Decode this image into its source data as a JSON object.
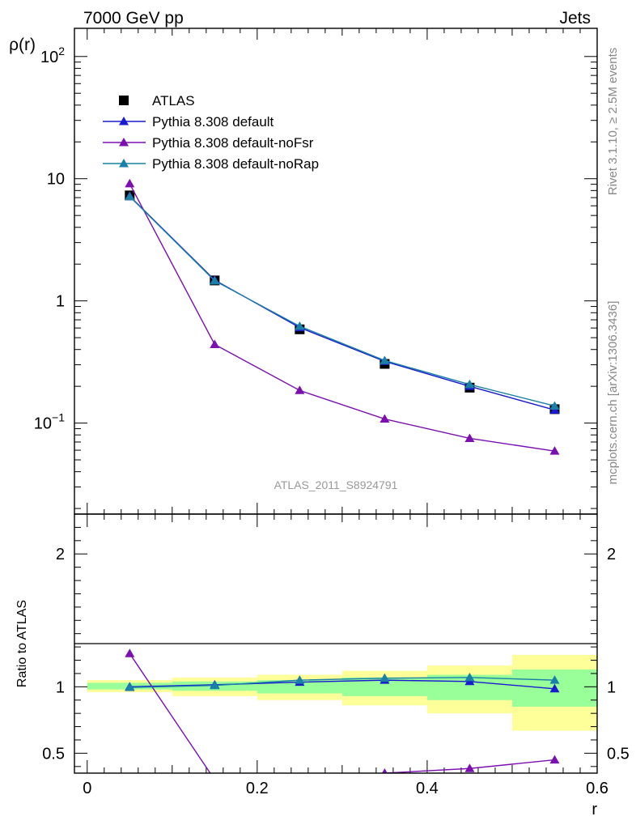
{
  "header": {
    "left_label": "7000 GeV pp",
    "right_label": "Jets"
  },
  "side_labels": {
    "rivet": "Rivet 3.1.10, ≥ 2.5M events",
    "mcplots": "mcplots.cern.ch [arXiv:1306.3436]"
  },
  "watermark": "ATLAS_2011_S8924791",
  "colors": {
    "atlas": "#000000",
    "default": "#1a1ad0",
    "noFsr": "#7b0fb0",
    "noRap": "#1a80a8",
    "band_outer": "#ffff99",
    "band_inner": "#99ff99"
  },
  "chart_data": [
    {
      "type": "scatter",
      "panel": "main",
      "ylabel": "ρ(r)",
      "xlim": [
        -0.015,
        0.6
      ],
      "ylim": [
        0.018,
        170
      ],
      "yscale": "log",
      "ytick_labels": [
        {
          "value": 0.1,
          "base": "10",
          "exp": "−1"
        },
        {
          "value": 1,
          "base": "1",
          "exp": ""
        },
        {
          "value": 10,
          "base": "10",
          "exp": ""
        },
        {
          "value": 100,
          "base": "10",
          "exp": "2"
        }
      ],
      "legend_position": "top-left",
      "x": [
        0.05,
        0.15,
        0.25,
        0.35,
        0.45,
        0.55
      ],
      "series": [
        {
          "name": "ATLAS",
          "key": "atlas",
          "marker": "square",
          "line": false,
          "values": [
            7.3,
            1.47,
            0.585,
            0.305,
            0.195,
            0.13
          ]
        },
        {
          "name": "Pythia 8.308 default",
          "key": "default",
          "marker": "triangle",
          "line": true,
          "values": [
            7.2,
            1.48,
            0.605,
            0.32,
            0.2,
            0.128
          ]
        },
        {
          "name": "Pythia 8.308 default-noFsr",
          "key": "noFsr",
          "marker": "triangle",
          "line": true,
          "values": [
            9.1,
            0.44,
            0.185,
            0.108,
            0.075,
            0.059
          ]
        },
        {
          "name": "Pythia 8.308 default-noRap",
          "key": "noRap",
          "marker": "triangle",
          "line": true,
          "values": [
            7.15,
            1.46,
            0.62,
            0.325,
            0.207,
            0.138
          ]
        }
      ]
    },
    {
      "type": "line",
      "panel": "ratio",
      "ylabel": "Ratio to ATLAS",
      "xlabel": "r",
      "xlim": [
        -0.015,
        0.6
      ],
      "ylim": [
        0.35,
        2.3
      ],
      "ytick_labels": [
        0.5,
        1,
        2
      ],
      "xtick_labels": [
        "0",
        "0.2",
        "0.4",
        "0.6"
      ],
      "xtick_values": [
        0,
        0.2,
        0.4,
        0.6
      ],
      "bands": [
        {
          "x0": 0.0,
          "x1": 0.1,
          "outer": [
            0.96,
            1.05
          ],
          "inner": [
            0.98,
            1.03
          ]
        },
        {
          "x0": 0.1,
          "x1": 0.2,
          "outer": [
            0.93,
            1.07
          ],
          "inner": [
            0.97,
            1.04
          ]
        },
        {
          "x0": 0.2,
          "x1": 0.3,
          "outer": [
            0.9,
            1.09
          ],
          "inner": [
            0.95,
            1.05
          ]
        },
        {
          "x0": 0.3,
          "x1": 0.4,
          "outer": [
            0.86,
            1.12
          ],
          "inner": [
            0.93,
            1.07
          ]
        },
        {
          "x0": 0.4,
          "x1": 0.5,
          "outer": [
            0.8,
            1.16
          ],
          "inner": [
            0.9,
            1.09
          ]
        },
        {
          "x0": 0.5,
          "x1": 0.6,
          "outer": [
            0.67,
            1.24
          ],
          "inner": [
            0.85,
            1.13
          ]
        }
      ],
      "x": [
        0.05,
        0.15,
        0.25,
        0.35,
        0.45,
        0.55
      ],
      "series": [
        {
          "name": "Pythia 8.308 default",
          "key": "default",
          "values": [
            1.0,
            1.015,
            1.035,
            1.05,
            1.04,
            0.985
          ]
        },
        {
          "name": "Pythia 8.308 default-noFsr",
          "key": "noFsr",
          "values": [
            1.25,
            0.3,
            0.32,
            0.35,
            0.385,
            0.45
          ]
        },
        {
          "name": "Pythia 8.308 default-noRap",
          "key": "noRap",
          "values": [
            0.995,
            1.01,
            1.05,
            1.065,
            1.07,
            1.05
          ]
        }
      ]
    }
  ]
}
